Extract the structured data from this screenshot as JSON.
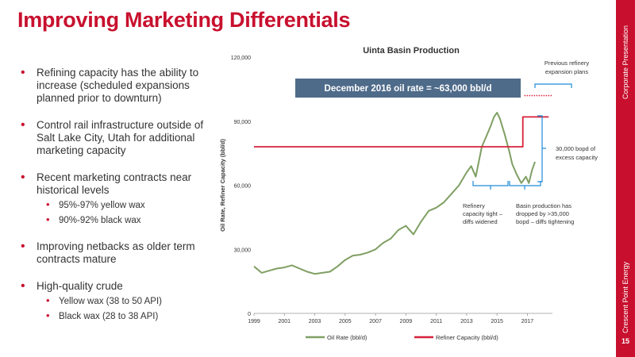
{
  "slide": {
    "title": "Improving Marketing Differentials",
    "side_top": "Corporate Presentation",
    "side_bottom": "Crescent Point Energy",
    "page_number": "15"
  },
  "bullets": {
    "b1": "Refining capacity has the ability to increase (scheduled expansions planned prior to downturn)",
    "b2": "Control rail infrastructure outside of Salt Lake City, Utah for additional marketing capacity",
    "b3": "Recent marketing contracts near historical levels",
    "b3a": "95%-97% yellow wax",
    "b3b": "90%-92% black wax",
    "b4": "Improving netbacks as older term contracts mature",
    "b5": "High-quality crude",
    "b5a": "Yellow wax (38 to 50 API)",
    "b5b": "Black wax (28 to 38 API)"
  },
  "chart_data": {
    "type": "line",
    "title": "Uinta Basin Production",
    "ylabel": "Oil Rate, Refiner Capacity (bbl/d)",
    "xlabel": "",
    "xlim": [
      1999,
      2018.5
    ],
    "ylim": [
      0,
      120000
    ],
    "x_ticks": [
      "1999",
      "2001",
      "2003",
      "2005",
      "2007",
      "2009",
      "2011",
      "2013",
      "2015",
      "2017"
    ],
    "y_ticks": [
      "0",
      "30,000",
      "60,000",
      "90,000",
      "120,000"
    ],
    "legend": [
      "Oil Rate (bbl/d)",
      "Refiner Capacity (bbl/d)"
    ],
    "legend_position": "bottom",
    "series": [
      {
        "name": "Oil Rate (bbl/d)",
        "color": "#7f9f63",
        "x": [
          1999.0,
          1999.5,
          2000.0,
          2000.5,
          2001.0,
          2001.5,
          2002.0,
          2002.5,
          2003.0,
          2003.5,
          2004.0,
          2004.5,
          2005.0,
          2005.5,
          2006.0,
          2006.5,
          2007.0,
          2007.5,
          2008.0,
          2008.5,
          2009.0,
          2009.5,
          2010.0,
          2010.5,
          2011.0,
          2011.5,
          2012.0,
          2012.5,
          2013.0,
          2013.3,
          2013.6,
          2014.0,
          2014.3,
          2014.6,
          2014.8,
          2015.0,
          2015.2,
          2015.5,
          2015.8,
          2016.0,
          2016.3,
          2016.6,
          2016.9,
          2017.1,
          2017.3,
          2017.5
        ],
        "values": [
          22000,
          19000,
          20000,
          21000,
          21500,
          22500,
          21000,
          19500,
          18500,
          19000,
          19500,
          22000,
          25000,
          27000,
          27500,
          28500,
          30000,
          33000,
          35000,
          39000,
          41000,
          37000,
          43000,
          48000,
          49500,
          52000,
          56000,
          60000,
          66000,
          69000,
          64000,
          78000,
          83000,
          88000,
          92000,
          94000,
          91000,
          84000,
          76000,
          70000,
          65000,
          61000,
          64000,
          61000,
          67000,
          71000
        ]
      },
      {
        "name": "Refiner Capacity (bbl/d)",
        "color": "#d6213a",
        "x": [
          1999.0,
          2016.7,
          2016.7,
          2018.4
        ],
        "values": [
          78000,
          78000,
          92000,
          92000
        ]
      }
    ],
    "annotations": {
      "box_label": "December 2016 oil rate = ~63,000 bbl/d",
      "previous_expansion": "Previous refinery expansion plans",
      "excess_capacity": "30,000 bopd of excess capacity",
      "refinery_tight": "Refinery capacity tight – diffs widened",
      "basin_dropped": "Basin production has dropped by >35,000 bopd – diffs tightening"
    }
  }
}
